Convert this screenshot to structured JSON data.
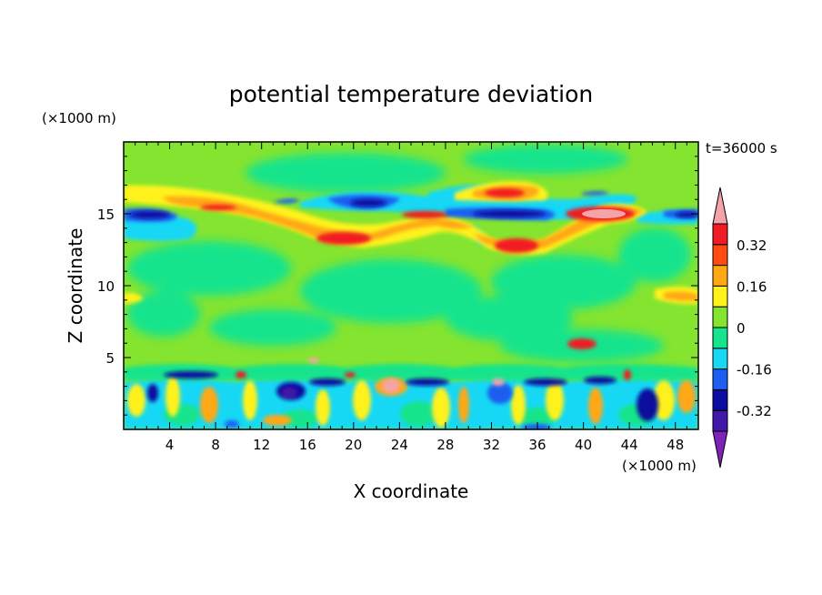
{
  "chart_data": {
    "type": "heatmap",
    "title": "potential temperature deviation",
    "time_label": "t=36000 s",
    "xlabel": "X coordinate",
    "ylabel": "Z coordinate",
    "x_unit": "(×1000 m)",
    "y_unit": "(×1000 m)",
    "xlim": [
      0,
      50
    ],
    "ylim": [
      0,
      20
    ],
    "x_ticks": [
      4,
      8,
      12,
      16,
      20,
      24,
      28,
      32,
      36,
      40,
      44,
      48
    ],
    "y_ticks": [
      5,
      10,
      15
    ],
    "colorbar": {
      "levels": [
        -0.48,
        -0.4,
        -0.32,
        -0.24,
        -0.16,
        -0.08,
        0,
        0.08,
        0.16,
        0.24,
        0.32,
        0.4,
        0.48
      ],
      "labels": [
        "-0.32",
        "-0.16",
        "0",
        "0.16",
        "0.32"
      ],
      "label_values": [
        -0.32,
        -0.16,
        0,
        0.16,
        0.32
      ],
      "colors": [
        "#7e22b8",
        "#4318a8",
        "#0c0c9e",
        "#1c5ef0",
        "#18d8f4",
        "#16e48c",
        "#84e430",
        "#fff21a",
        "#ffa812",
        "#ff4a10",
        "#f01c24",
        "#f4a4a8"
      ]
    },
    "features": [
      {
        "name": "upper warm band (yellow/orange)",
        "x_range": [
          0,
          50
        ],
        "z": 15.5,
        "value": 0.2
      },
      {
        "name": "upper cold band (blue)",
        "x_range": [
          0,
          50
        ],
        "z": 15.0,
        "value": -0.3
      },
      {
        "name": "warm patch",
        "x": 20,
        "z": 13.5,
        "value": 0.32
      },
      {
        "name": "warm patch",
        "x": 34,
        "z": 12.8,
        "value": 0.34
      },
      {
        "name": "warm patch",
        "x": 41,
        "z": 15.3,
        "value": 0.45
      },
      {
        "name": "boundary layer turbulence",
        "x_range": [
          0,
          50
        ],
        "z_range": [
          0,
          4.5
        ],
        "value_range": [
          -0.48,
          0.48
        ]
      }
    ]
  }
}
